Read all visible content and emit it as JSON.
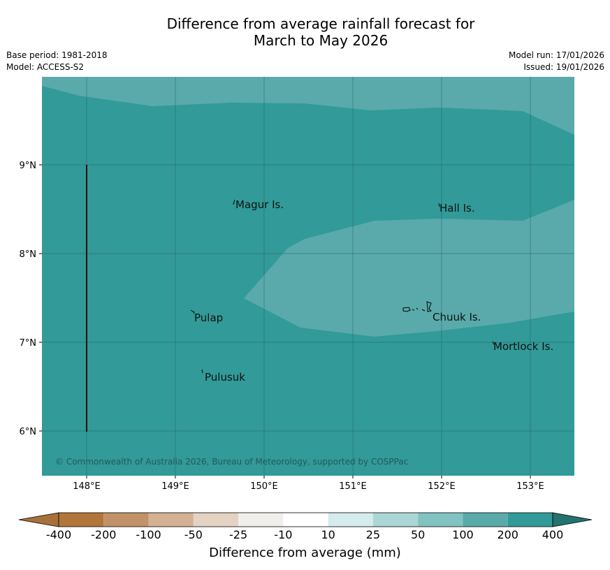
{
  "title_line1": "Difference from average rainfall forecast for",
  "title_line2": "March to May 2026",
  "meta": {
    "base_period": "Base period: 1981-2018",
    "model": "Model: ACCESS-S2",
    "model_run": "Model run: 17/01/2026",
    "issued": "Issued: 19/01/2026"
  },
  "map": {
    "lon_labels": [
      "148°E",
      "149°E",
      "150°E",
      "151°E",
      "152°E",
      "153°E"
    ],
    "lat_labels": [
      "9°N",
      "8°N",
      "7°N",
      "6°N"
    ],
    "places": [
      "Magur Is.",
      "Hall Is.",
      "Pulap",
      "Chuuk Is.",
      "Mortlock Is.",
      "Pulusuk"
    ],
    "copyright": "© Commonwealth of Australia 2026, Bureau of Meteorology, supported by COSPPac",
    "colors": {
      "above_200": "#329a98",
      "range_100_200": "#5aaaab"
    }
  },
  "colorbar": {
    "ticks": [
      "-400",
      "-200",
      "-100",
      "-50",
      "-25",
      "-10",
      "10",
      "25",
      "50",
      "100",
      "200",
      "400"
    ],
    "colors": [
      "#a8713a",
      "#b1763b",
      "#c19267",
      "#d4b192",
      "#e4d3c2",
      "#f1efeb",
      "#ffffff",
      "#d6ebeb",
      "#abd6d6",
      "#82c2c1",
      "#5aaaab",
      "#329a98",
      "#237370"
    ],
    "label": "Difference from average (mm)"
  }
}
